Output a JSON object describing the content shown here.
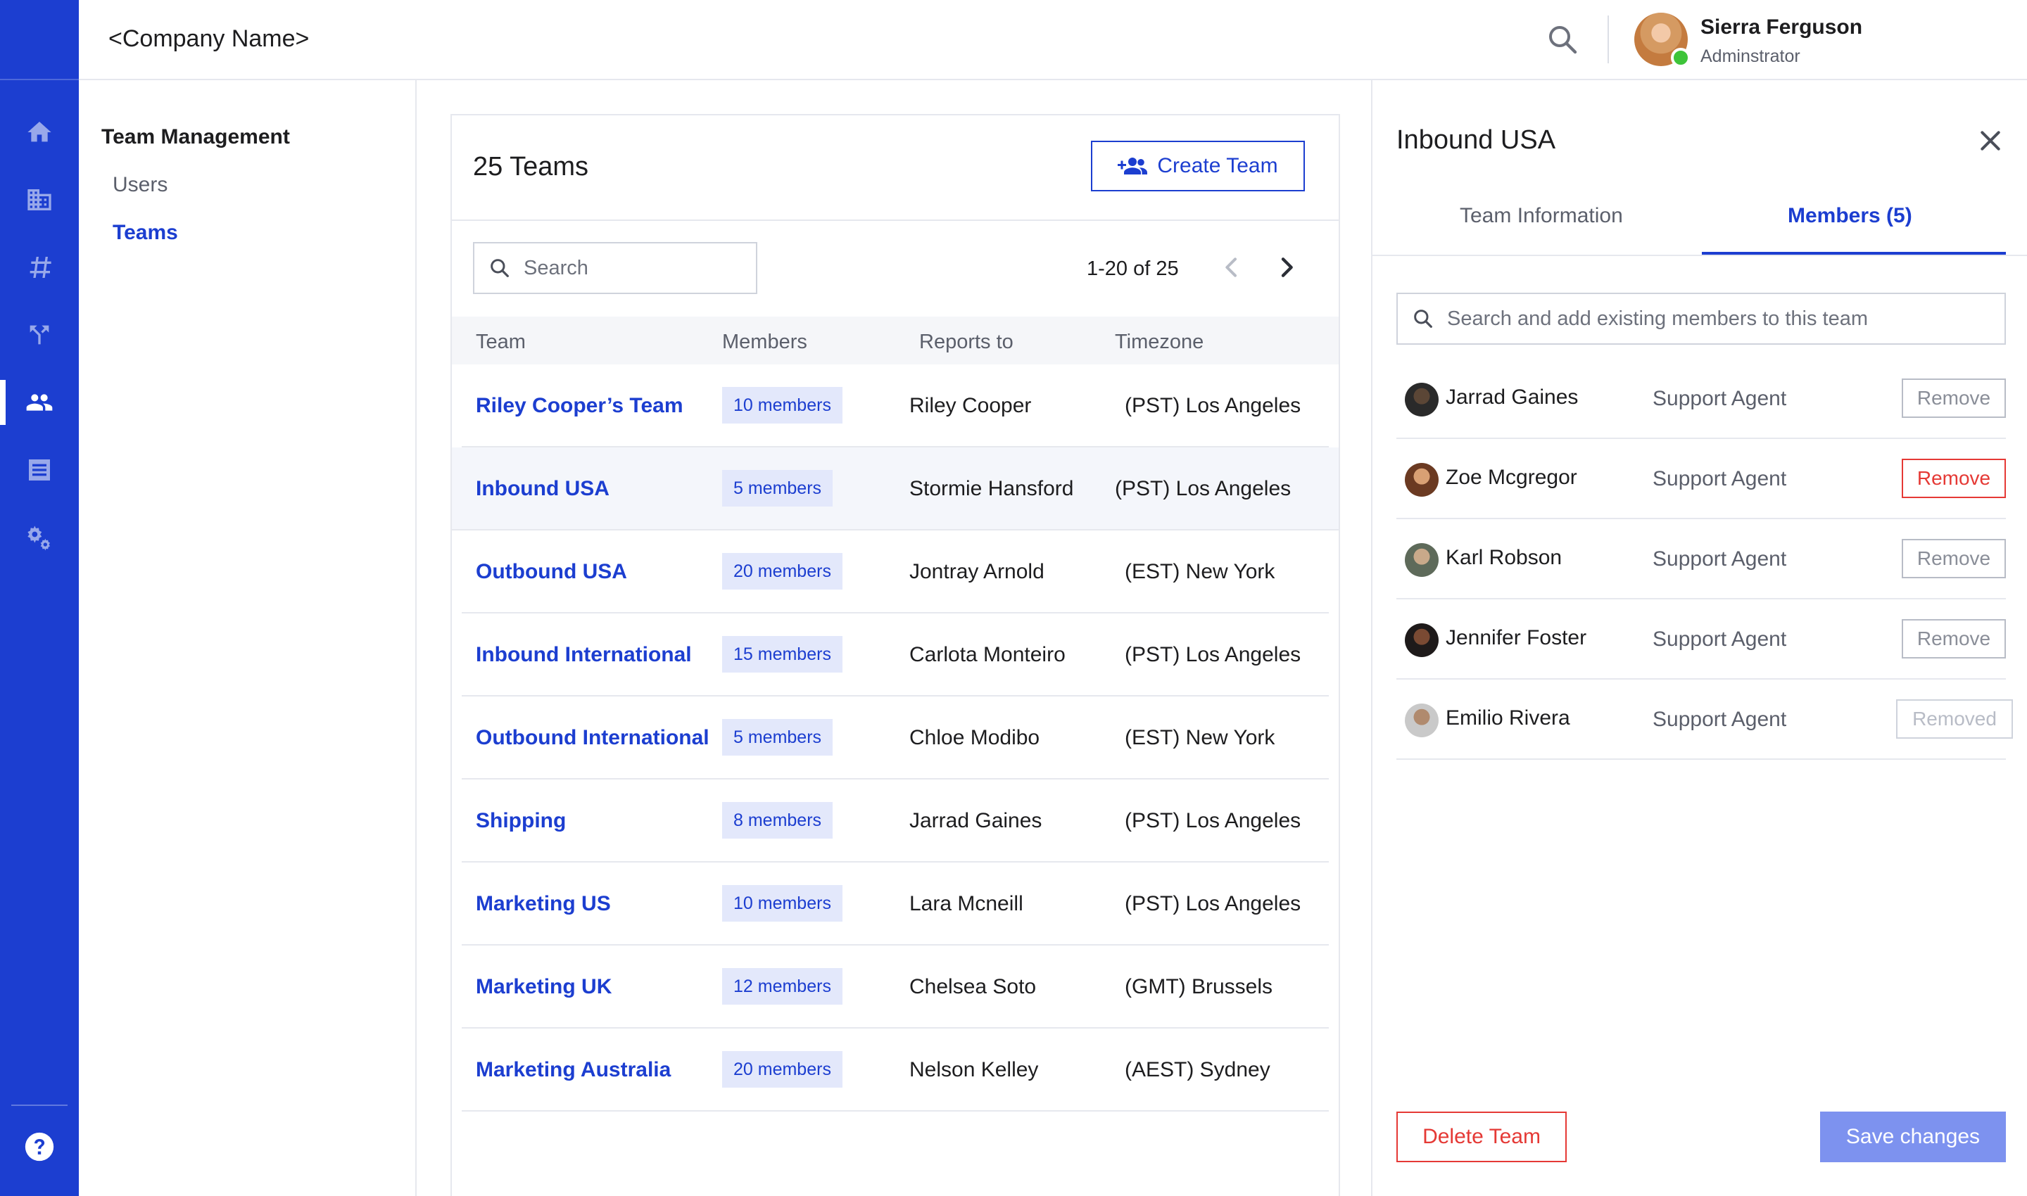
{
  "header": {
    "company_name": "<Company Name>",
    "user": {
      "name": "Sierra Ferguson",
      "role": "Adminstrator",
      "status": "online"
    }
  },
  "rail": {
    "icons": [
      "home-icon",
      "building-icon",
      "hash-icon",
      "branch-icon",
      "users-icon",
      "document-icon",
      "settings-gears-icon"
    ],
    "active": "users-icon",
    "help_icon": "help-icon"
  },
  "subnav": {
    "section_title": "Team Management",
    "items": [
      {
        "label": "Users",
        "active": false
      },
      {
        "label": "Teams",
        "active": true
      }
    ]
  },
  "main": {
    "title": "25 Teams",
    "create_button_label": "Create Team",
    "search_placeholder": "Search",
    "pagination": "1-20 of 25",
    "columns": [
      "Team",
      "Members",
      "Reports to",
      "Timezone"
    ],
    "rows": [
      {
        "team": "Riley Cooper’s Team",
        "members": "10 members",
        "reports_to": "Riley Cooper",
        "timezone": "(PST) Los Angeles"
      },
      {
        "team": "Inbound USA",
        "members": "5 members",
        "reports_to": "Stormie Hansford",
        "timezone": "(PST) Los Angeles"
      },
      {
        "team": "Outbound USA",
        "members": "20 members",
        "reports_to": "Jontray Arnold",
        "timezone": "(EST) New York"
      },
      {
        "team": "Inbound International",
        "members": "15 members",
        "reports_to": "Carlota Monteiro",
        "timezone": "(PST) Los Angeles"
      },
      {
        "team": "Outbound International",
        "members": "5 members",
        "reports_to": "Chloe Modibo",
        "timezone": "(EST) New York"
      },
      {
        "team": "Shipping",
        "members": "8 members",
        "reports_to": "Jarrad Gaines",
        "timezone": "(PST) Los Angeles"
      },
      {
        "team": "Marketing US",
        "members": "10 members",
        "reports_to": "Lara Mcneill",
        "timezone": "(PST) Los Angeles"
      },
      {
        "team": "Marketing UK",
        "members": "12 members",
        "reports_to": "Chelsea Soto",
        "timezone": "(GMT) Brussels"
      },
      {
        "team": "Marketing Australia",
        "members": "20 members",
        "reports_to": "Nelson Kelley",
        "timezone": "(AEST) Sydney"
      }
    ],
    "selected_row": 1
  },
  "panel": {
    "title": "Inbound USA",
    "tabs": [
      {
        "label": "Team Information",
        "active": false
      },
      {
        "label": "Members (5)",
        "active": true
      }
    ],
    "search_placeholder": "Search and add existing members to this team",
    "members": [
      {
        "name": "Jarrad Gaines",
        "role": "Support Agent",
        "action": "Remove",
        "state": "default"
      },
      {
        "name": "Zoe Mcgregor",
        "role": "Support Agent",
        "action": "Remove",
        "state": "hover"
      },
      {
        "name": "Karl Robson",
        "role": "Support Agent",
        "action": "Remove",
        "state": "default"
      },
      {
        "name": "Jennifer Foster",
        "role": "Support Agent",
        "action": "Remove",
        "state": "default"
      },
      {
        "name": "Emilio Rivera",
        "role": "Support Agent",
        "action": "Removed",
        "state": "removed"
      }
    ],
    "delete_label": "Delete Team",
    "save_label": "Save changes"
  },
  "colors": {
    "brand": "#1c3ed0",
    "danger": "#e53935",
    "save_disabled": "#7d92ef",
    "badge_bg": "#e3e8fb",
    "online": "#3ec43a"
  }
}
